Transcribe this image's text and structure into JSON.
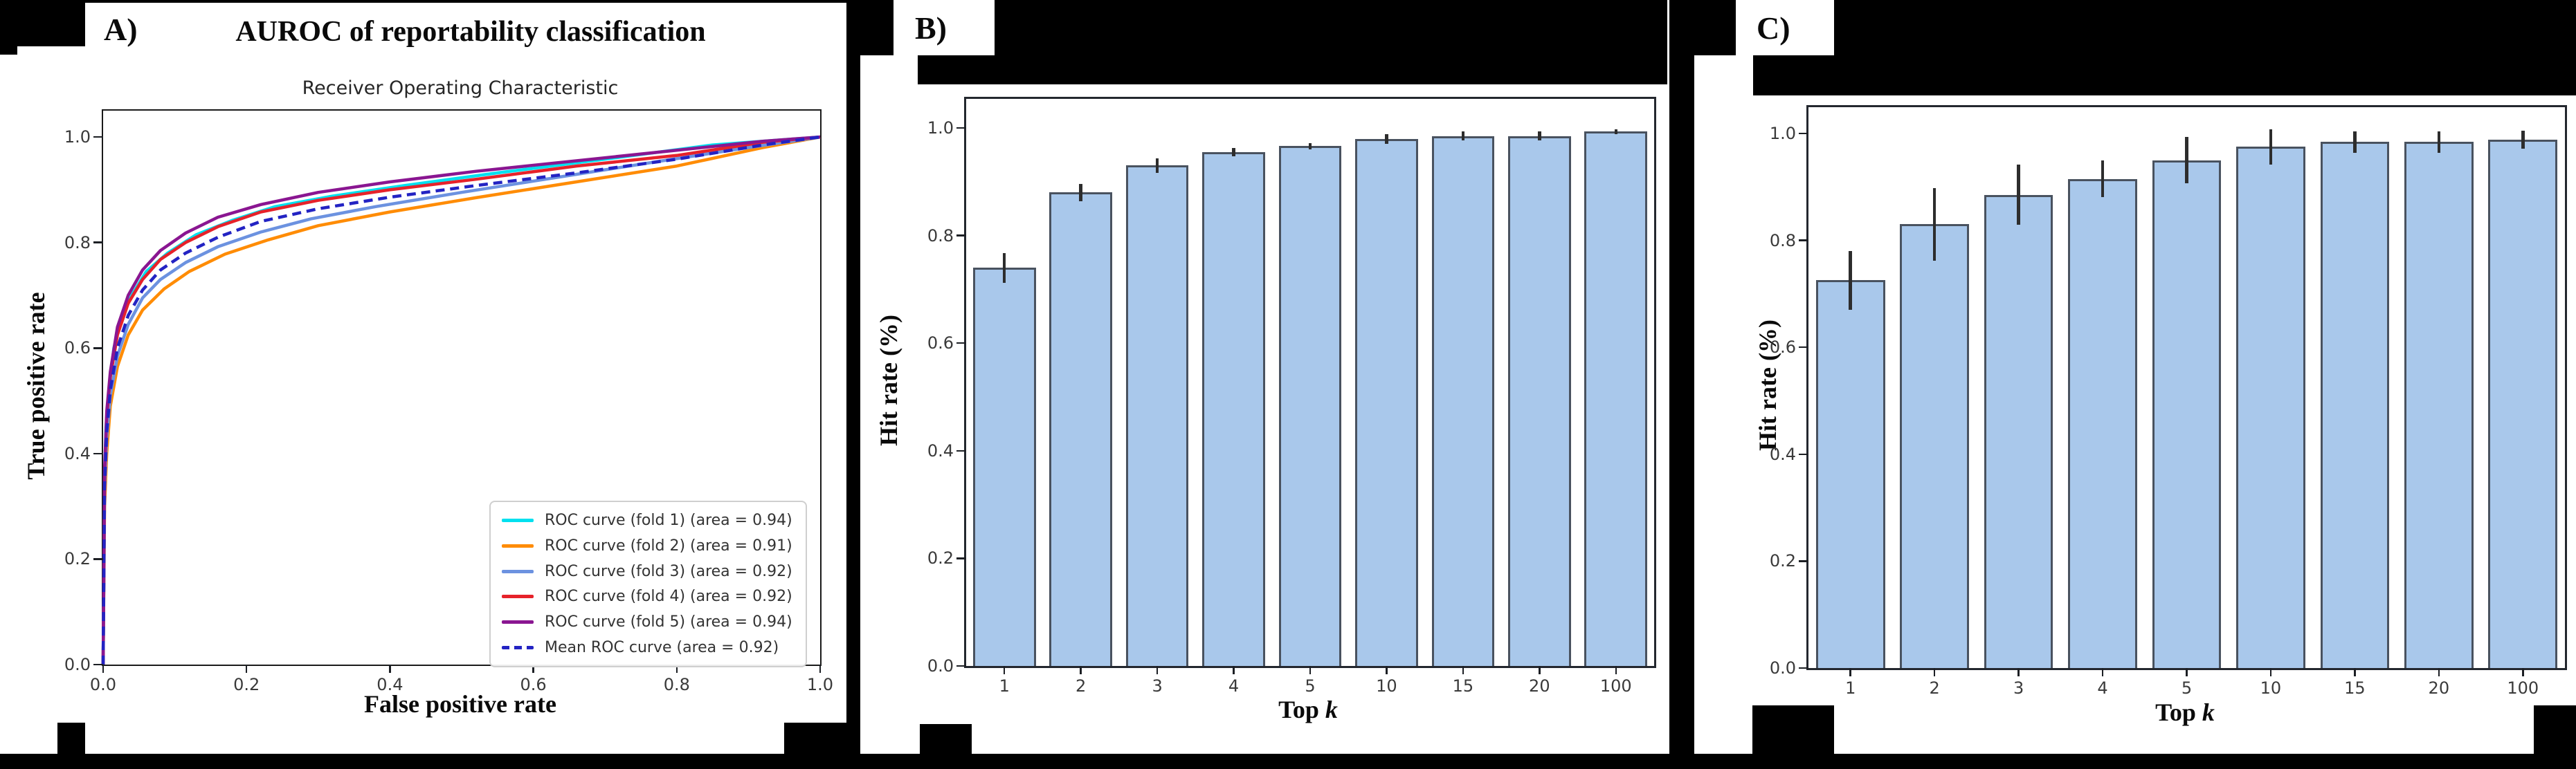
{
  "figure": {
    "background_color": "#000000",
    "panel_color": "#ffffff"
  },
  "panels": {
    "a": {
      "label": "A)",
      "title": "AUROC of reportability classification"
    },
    "b": {
      "label": "B)"
    },
    "c": {
      "label": "C)"
    }
  },
  "chart_data": [
    {
      "type": "line",
      "panel": "A",
      "title": "Receiver Operating Characteristic",
      "xlabel": "False positive rate",
      "ylabel": "True positive rate",
      "xlim": [
        0,
        1.0
      ],
      "ylim": [
        0,
        1.05
      ],
      "xticks": [
        "0.0",
        "0.2",
        "0.4",
        "0.6",
        "0.8",
        "1.0"
      ],
      "yticks": [
        "0.0",
        "0.2",
        "0.4",
        "0.6",
        "0.8",
        "1.0"
      ],
      "grid": false,
      "legend_position": "lower right",
      "series": [
        {
          "name": "ROC curve (fold 1) (area = 0.94)",
          "auc": 0.94,
          "color": "#00e0ef",
          "dash": false,
          "points": [
            [
              0,
              0
            ],
            [
              0.002,
              0.35
            ],
            [
              0.004,
              0.45
            ],
            [
              0.008,
              0.52
            ],
            [
              0.015,
              0.6
            ],
            [
              0.025,
              0.655
            ],
            [
              0.04,
              0.7
            ],
            [
              0.06,
              0.745
            ],
            [
              0.09,
              0.78
            ],
            [
              0.13,
              0.815
            ],
            [
              0.18,
              0.842
            ],
            [
              0.24,
              0.868
            ],
            [
              0.32,
              0.888
            ],
            [
              0.42,
              0.908
            ],
            [
              0.55,
              0.932
            ],
            [
              0.7,
              0.958
            ],
            [
              0.85,
              0.985
            ],
            [
              1,
              1
            ]
          ]
        },
        {
          "name": "ROC curve (fold 2) (area = 0.91)",
          "auc": 0.91,
          "color": "#ff8c05",
          "dash": false,
          "points": [
            [
              0,
              0
            ],
            [
              0.002,
              0.3
            ],
            [
              0.005,
              0.4
            ],
            [
              0.01,
              0.49
            ],
            [
              0.02,
              0.565
            ],
            [
              0.035,
              0.625
            ],
            [
              0.055,
              0.672
            ],
            [
              0.085,
              0.712
            ],
            [
              0.12,
              0.745
            ],
            [
              0.17,
              0.778
            ],
            [
              0.23,
              0.805
            ],
            [
              0.3,
              0.832
            ],
            [
              0.4,
              0.858
            ],
            [
              0.52,
              0.885
            ],
            [
              0.66,
              0.915
            ],
            [
              0.8,
              0.945
            ],
            [
              0.92,
              0.98
            ],
            [
              1,
              1
            ]
          ]
        },
        {
          "name": "ROC curve (fold 3) (area = 0.92)",
          "auc": 0.92,
          "color": "#6c92e0",
          "dash": false,
          "points": [
            [
              0,
              0
            ],
            [
              0.002,
              0.33
            ],
            [
              0.005,
              0.43
            ],
            [
              0.01,
              0.51
            ],
            [
              0.02,
              0.585
            ],
            [
              0.035,
              0.645
            ],
            [
              0.055,
              0.695
            ],
            [
              0.08,
              0.73
            ],
            [
              0.115,
              0.762
            ],
            [
              0.16,
              0.792
            ],
            [
              0.22,
              0.82
            ],
            [
              0.29,
              0.845
            ],
            [
              0.38,
              0.868
            ],
            [
              0.5,
              0.895
            ],
            [
              0.64,
              0.925
            ],
            [
              0.78,
              0.955
            ],
            [
              0.9,
              0.98
            ],
            [
              1,
              1
            ]
          ]
        },
        {
          "name": "ROC curve (fold 4) (area = 0.92)",
          "auc": 0.92,
          "color": "#e6222a",
          "dash": false,
          "points": [
            [
              0,
              0
            ],
            [
              0.002,
              0.36
            ],
            [
              0.005,
              0.47
            ],
            [
              0.01,
              0.545
            ],
            [
              0.02,
              0.625
            ],
            [
              0.035,
              0.685
            ],
            [
              0.055,
              0.73
            ],
            [
              0.08,
              0.768
            ],
            [
              0.115,
              0.8
            ],
            [
              0.16,
              0.83
            ],
            [
              0.22,
              0.858
            ],
            [
              0.3,
              0.88
            ],
            [
              0.4,
              0.9
            ],
            [
              0.52,
              0.92
            ],
            [
              0.66,
              0.945
            ],
            [
              0.8,
              0.965
            ],
            [
              0.92,
              0.99
            ],
            [
              1,
              1
            ]
          ]
        },
        {
          "name": "ROC curve (fold 5) (area = 0.94)",
          "auc": 0.94,
          "color": "#8a1691",
          "dash": false,
          "points": [
            [
              0,
              0
            ],
            [
              0.002,
              0.37
            ],
            [
              0.005,
              0.48
            ],
            [
              0.01,
              0.555
            ],
            [
              0.02,
              0.64
            ],
            [
              0.035,
              0.7
            ],
            [
              0.055,
              0.748
            ],
            [
              0.08,
              0.785
            ],
            [
              0.115,
              0.818
            ],
            [
              0.16,
              0.848
            ],
            [
              0.22,
              0.872
            ],
            [
              0.3,
              0.895
            ],
            [
              0.4,
              0.915
            ],
            [
              0.52,
              0.935
            ],
            [
              0.66,
              0.955
            ],
            [
              0.8,
              0.975
            ],
            [
              0.92,
              0.992
            ],
            [
              1,
              1
            ]
          ]
        },
        {
          "name": "Mean ROC curve (area = 0.92)",
          "auc": 0.92,
          "color": "#2323c3",
          "dash": true,
          "points": [
            [
              0,
              0
            ],
            [
              0.002,
              0.34
            ],
            [
              0.005,
              0.44
            ],
            [
              0.01,
              0.52
            ],
            [
              0.02,
              0.6
            ],
            [
              0.035,
              0.662
            ],
            [
              0.055,
              0.71
            ],
            [
              0.08,
              0.748
            ],
            [
              0.115,
              0.78
            ],
            [
              0.16,
              0.81
            ],
            [
              0.22,
              0.84
            ],
            [
              0.3,
              0.864
            ],
            [
              0.4,
              0.886
            ],
            [
              0.52,
              0.908
            ],
            [
              0.66,
              0.932
            ],
            [
              0.8,
              0.958
            ],
            [
              0.92,
              0.985
            ],
            [
              1,
              1
            ]
          ]
        }
      ]
    },
    {
      "type": "bar",
      "panel": "B",
      "categories": [
        "1",
        "2",
        "3",
        "4",
        "5",
        "10",
        "15",
        "20",
        "100"
      ],
      "values": [
        0.74,
        0.88,
        0.93,
        0.955,
        0.966,
        0.98,
        0.985,
        0.985,
        0.993
      ],
      "errors": [
        0.028,
        0.016,
        0.013,
        0.008,
        0.006,
        0.009,
        0.008,
        0.008,
        0.005
      ],
      "xlabel": "Top k",
      "xlabel_prefix": "Top ",
      "xlabel_var": "k",
      "ylabel": "Hit rate (%)",
      "ylim": [
        0,
        1.054
      ],
      "yticks": [
        "0.0",
        "0.2",
        "0.4",
        "0.6",
        "0.8",
        "1.0"
      ],
      "grid": false,
      "bar_color": "#a9c8eb",
      "bar_edge": "#49525f",
      "error_color": "#2d2d2d"
    },
    {
      "type": "bar",
      "panel": "C",
      "categories": [
        "1",
        "2",
        "3",
        "4",
        "5",
        "10",
        "15",
        "20",
        "100"
      ],
      "values": [
        0.725,
        0.83,
        0.885,
        0.915,
        0.95,
        0.975,
        0.984,
        0.984,
        0.988
      ],
      "errors": [
        0.055,
        0.068,
        0.056,
        0.034,
        0.043,
        0.033,
        0.02,
        0.02,
        0.017
      ],
      "xlabel": "Top k",
      "xlabel_prefix": "Top ",
      "xlabel_var": "k",
      "ylabel": "Hit rate (%)",
      "ylim": [
        0,
        1.049
      ],
      "yticks": [
        "0.0",
        "0.2",
        "0.4",
        "0.6",
        "0.8",
        "1.0"
      ],
      "grid": false,
      "bar_color": "#a9c8eb",
      "bar_edge": "#49525f",
      "error_color": "#2d2d2d"
    }
  ]
}
